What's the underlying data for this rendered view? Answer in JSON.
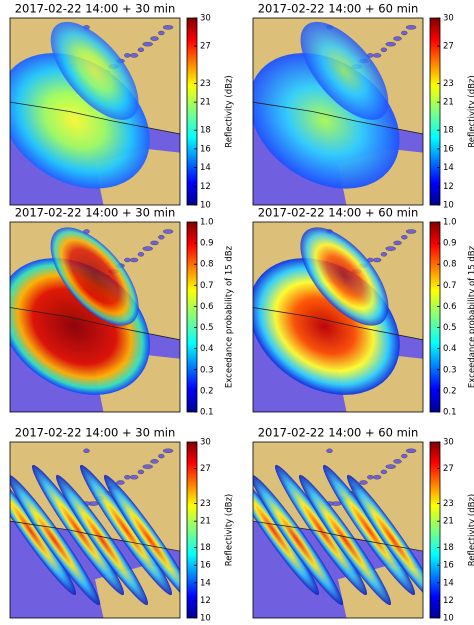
{
  "panels": [
    {
      "title": "2017-02-22 14:00 + 30 min",
      "colorbar": {
        "label": "Reflectivity (dBz)",
        "ticks": [
          10,
          12,
          14,
          16,
          18,
          21,
          23,
          27,
          30
        ]
      }
    },
    {
      "title": "2017-02-22 14:00 + 60 min",
      "colorbar": {
        "label": "Reflectivity (dBz)",
        "ticks": [
          10,
          12,
          14,
          16,
          18,
          21,
          23,
          27,
          30
        ]
      }
    },
    {
      "title": "2017-02-22 14:00 + 30 min",
      "colorbar": {
        "label": "Exceedance probability of 15 dBz",
        "ticks": [
          0.1,
          0.2,
          0.3,
          0.4,
          0.5,
          0.6,
          0.7,
          0.8,
          0.9,
          {
            "value": 1,
            "label": "1.0"
          }
        ]
      }
    },
    {
      "title": "2017-02-22 14:00 + 60 min",
      "colorbar": {
        "label": "Exceedance probability of 15 dBz",
        "ticks": [
          0.1,
          0.2,
          0.3,
          0.4,
          0.5,
          0.6,
          0.7,
          0.8,
          0.9,
          {
            "value": 1,
            "label": "1.0"
          }
        ]
      }
    },
    {
      "title": "2017-02-22 14:00 + 30 min",
      "colorbar": {
        "label": "Reflectivity (dBz)",
        "ticks": [
          10,
          12,
          14,
          16,
          18,
          21,
          23,
          27,
          30
        ]
      }
    },
    {
      "title": "2017-02-22 14:00 + 60 min",
      "colorbar": {
        "label": "Reflectivity (dBz)",
        "ticks": [
          10,
          12,
          14,
          16,
          18,
          21,
          23,
          27,
          30
        ]
      }
    }
  ]
}
